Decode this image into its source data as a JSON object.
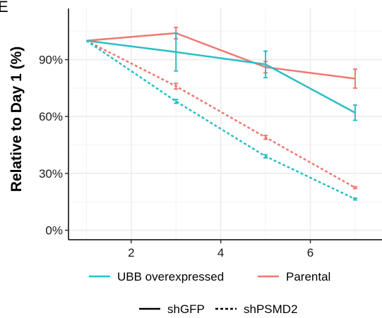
{
  "chart_data": {
    "type": "line",
    "panel_label": "E",
    "ylabel": "Relative to Day  1 (%)",
    "xlabel": "",
    "xlim": [
      0.6,
      7.6
    ],
    "ylim": [
      -0.05,
      1.17
    ],
    "x_ticks": [
      2,
      4,
      6
    ],
    "x_tick_labels": [
      "2",
      "4",
      "6"
    ],
    "y_ticks": [
      0,
      0.3,
      0.6,
      0.9
    ],
    "y_tick_labels": [
      "0%",
      "30%",
      "60%",
      "90%"
    ],
    "grid": true,
    "legend_color": {
      "position": "bottom",
      "entries": [
        {
          "label": "UBB overexpressed",
          "color": "#2ABFC4"
        },
        {
          "label": "Parental",
          "color": "#EF7972"
        }
      ]
    },
    "legend_linetype": {
      "position": "bottom",
      "entries": [
        {
          "label": "shGFP",
          "dash": "solid"
        },
        {
          "label": "shPSMD2",
          "dash": "dashed"
        }
      ]
    },
    "series": [
      {
        "group": "Parental",
        "condition": "shGFP",
        "color": "#EF7972",
        "dash": "solid",
        "x": [
          1,
          3,
          5,
          7
        ],
        "y": [
          1.0,
          1.04,
          0.86,
          0.8
        ],
        "err": [
          0,
          0.03,
          0.03,
          0.05
        ]
      },
      {
        "group": "UBB overexpressed",
        "condition": "shGFP",
        "color": "#2ABFC4",
        "dash": "solid",
        "x": [
          1,
          3,
          5,
          7
        ],
        "y": [
          1.0,
          0.94,
          0.875,
          0.62
        ],
        "err": [
          0,
          0.1,
          0.07,
          0.04
        ]
      },
      {
        "group": "Parental",
        "condition": "shPSMD2",
        "color": "#EF7972",
        "dash": "dashed",
        "x": [
          1,
          3,
          5,
          7
        ],
        "y": [
          1.0,
          0.76,
          0.49,
          0.225
        ],
        "err": [
          0,
          0.015,
          0.01,
          0.005
        ]
      },
      {
        "group": "UBB overexpressed",
        "condition": "shPSMD2",
        "color": "#2ABFC4",
        "dash": "dashed",
        "x": [
          1,
          3,
          5,
          7
        ],
        "y": [
          1.0,
          0.68,
          0.39,
          0.165
        ],
        "err": [
          0,
          0.01,
          0.008,
          0.005
        ]
      }
    ]
  }
}
